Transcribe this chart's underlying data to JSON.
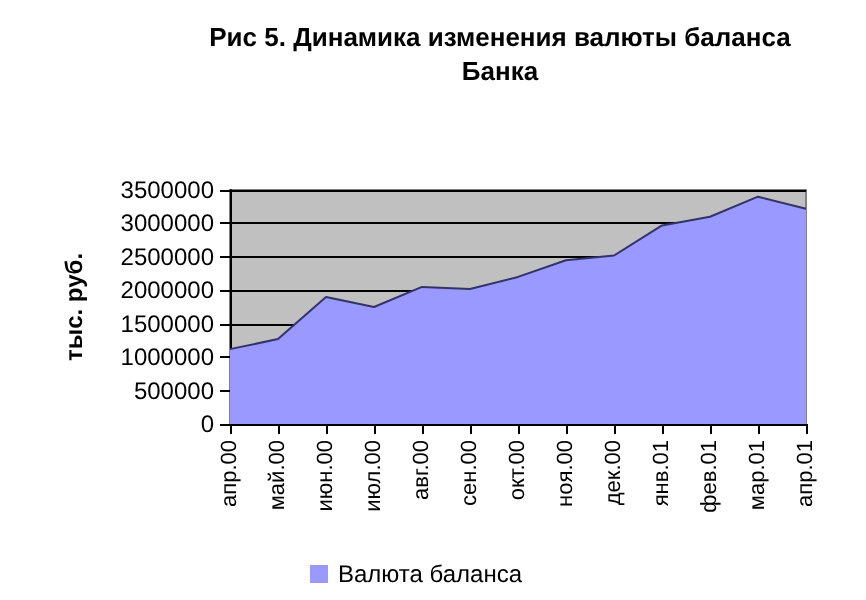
{
  "chart_data": {
    "type": "area",
    "title": "Рис 5. Динамика изменения валюты баланса\nБанка",
    "ylabel": "тыс. руб.",
    "categories": [
      "апр.00",
      "май.00",
      "июн.00",
      "июл.00",
      "авг.00",
      "сен.00",
      "окт.00",
      "ноя.00",
      "дек.00",
      "янв.01",
      "фев.01",
      "мар.01",
      "апр.01"
    ],
    "series": [
      {
        "name": "Валюта баланса",
        "color": "#9999ff",
        "values": [
          1120000,
          1270000,
          1900000,
          1750000,
          2050000,
          2020000,
          2200000,
          2450000,
          2520000,
          2970000,
          3100000,
          3400000,
          3220000
        ]
      }
    ],
    "ylim": [
      0,
      3500000
    ],
    "yticks": [
      0,
      500000,
      1000000,
      1500000,
      2000000,
      2500000,
      3000000,
      3500000
    ],
    "grid": "y",
    "legend": "bottom"
  }
}
